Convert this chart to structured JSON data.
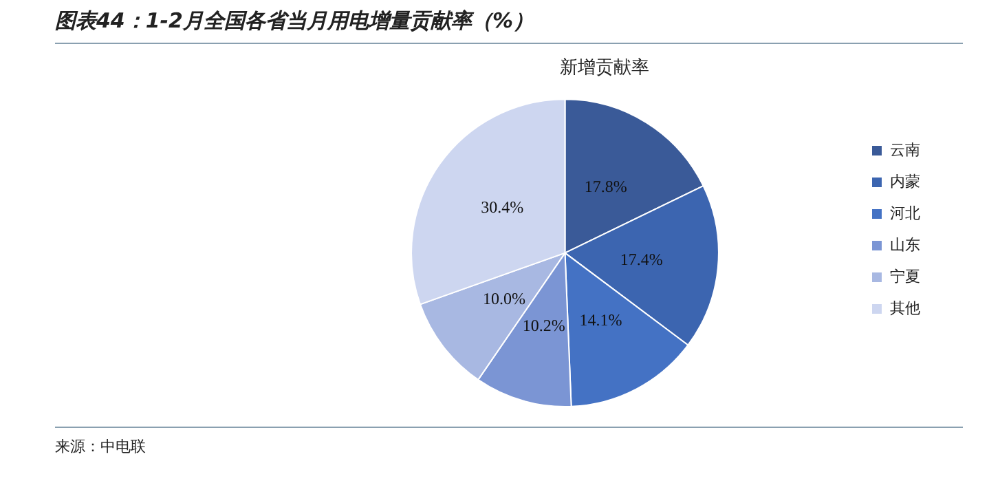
{
  "chart_data": {
    "type": "pie",
    "title": "图表44：1-2月全国各省当月用电增量贡献率（%）",
    "subtitle": "新增贡献率",
    "categories": [
      "云南",
      "内蒙",
      "河北",
      "山东",
      "宁夏",
      "其他"
    ],
    "values": [
      17.8,
      17.4,
      14.1,
      10.2,
      10.0,
      30.4
    ],
    "colors": [
      "#3a5a98",
      "#3c65b0",
      "#4472c4",
      "#7b95d4",
      "#a8b8e2",
      "#cdd6f0"
    ],
    "value_labels": [
      "17.8%",
      "17.4%",
      "14.1%",
      "10.2%",
      "10.0%",
      "30.4%"
    ],
    "legend": "right",
    "annotations": [
      "来源：中电联"
    ]
  }
}
